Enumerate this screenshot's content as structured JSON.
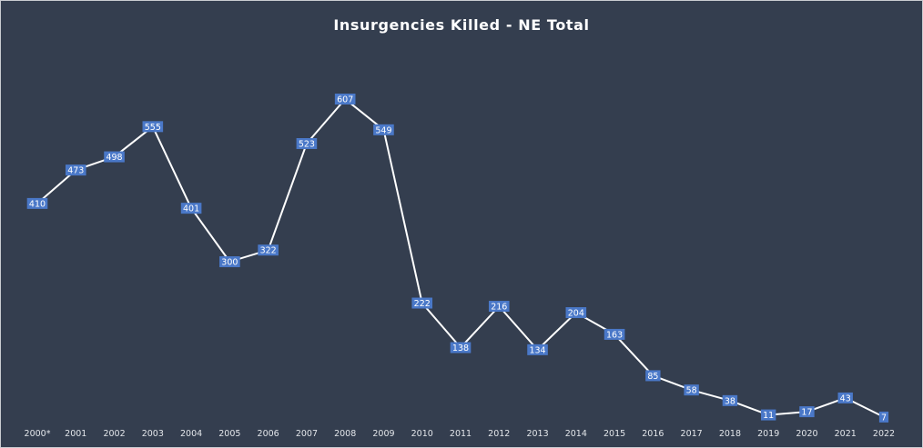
{
  "chart_data": {
    "type": "line",
    "title": "Insurgencies Killed - NE Total",
    "xlabel": "",
    "ylabel": "",
    "categories": [
      "2000*",
      "2001",
      "2002",
      "2003",
      "2004",
      "2005",
      "2006",
      "2007",
      "2008",
      "2009",
      "2010",
      "2011",
      "2012",
      "2013",
      "2014",
      "2015",
      "2016",
      "2017",
      "2018",
      "2019",
      "2020",
      "2021",
      "2022"
    ],
    "series": [
      {
        "values": [
          410,
          473,
          498,
          555,
          401,
          300,
          322,
          523,
          607,
          549,
          222,
          138,
          216,
          134,
          204,
          163,
          85,
          58,
          38,
          11,
          17,
          43,
          7
        ]
      }
    ],
    "ylim": [
      0,
      607
    ],
    "grid": false,
    "data_labels": true,
    "colors": {
      "background": "#343e4f",
      "line": "#ffffff",
      "label_fill": "#4a78c8",
      "text": "#ffffff"
    }
  }
}
